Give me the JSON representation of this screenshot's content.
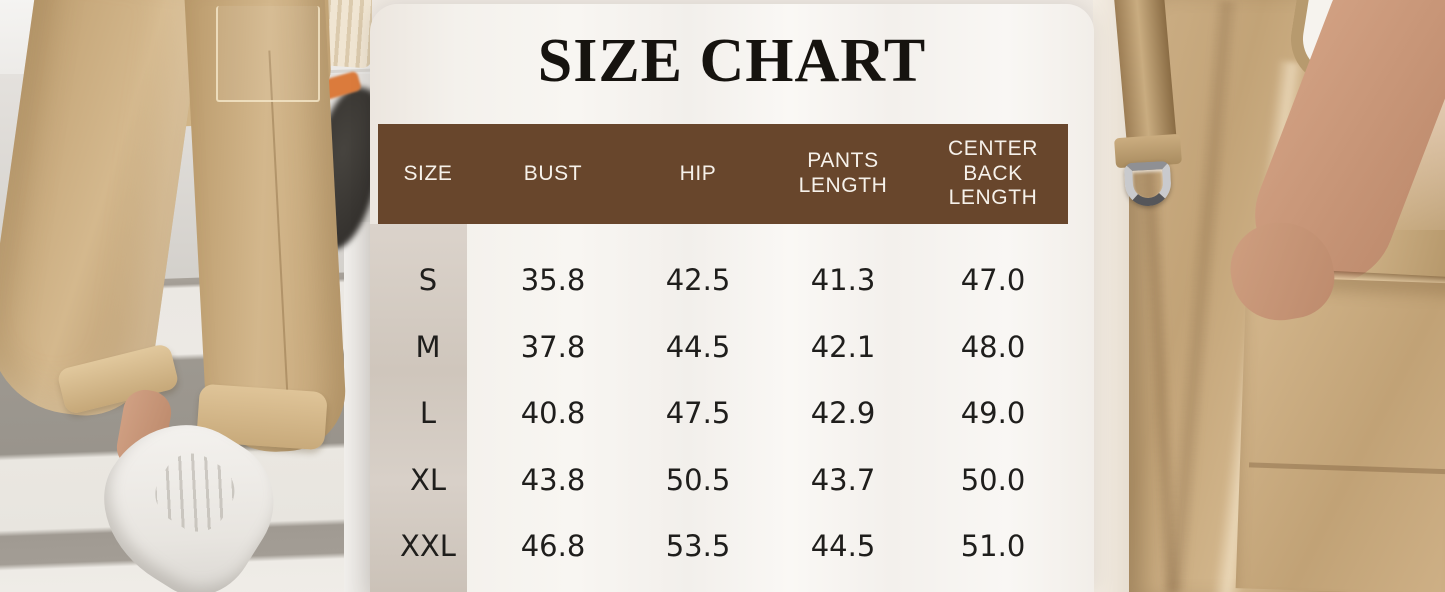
{
  "panel": {
    "title": "SIZE CHART"
  },
  "table": {
    "columns": [
      "SIZE",
      "BUST",
      "HIP",
      "PANTS\nLENGTH",
      "CENTER\nBACK\nLENGTH"
    ],
    "rows": [
      {
        "size": "S",
        "bust": "35.8",
        "hip": "42.5",
        "pants_length": "41.3",
        "center_back_length": "47.0"
      },
      {
        "size": "M",
        "bust": "37.8",
        "hip": "44.5",
        "pants_length": "42.1",
        "center_back_length": "48.0"
      },
      {
        "size": "L",
        "bust": "40.8",
        "hip": "47.5",
        "pants_length": "42.9",
        "center_back_length": "49.0"
      },
      {
        "size": "XL",
        "bust": "43.8",
        "hip": "50.5",
        "pants_length": "43.7",
        "center_back_length": "50.0"
      },
      {
        "size": "XXL",
        "bust": "46.8",
        "hip": "53.5",
        "pants_length": "44.5",
        "center_back_length": "51.0"
      }
    ]
  },
  "chart_data": {
    "type": "table",
    "title": "SIZE CHART",
    "columns": [
      "SIZE",
      "BUST",
      "HIP",
      "PANTS LENGTH",
      "CENTER BACK LENGTH"
    ],
    "rows": [
      [
        "S",
        35.8,
        42.5,
        41.3,
        47.0
      ],
      [
        "M",
        37.8,
        44.5,
        42.1,
        48.0
      ],
      [
        "L",
        40.8,
        47.5,
        42.9,
        49.0
      ],
      [
        "XL",
        43.8,
        50.5,
        43.7,
        50.0
      ],
      [
        "XXL",
        46.8,
        53.5,
        44.5,
        51.0
      ]
    ]
  },
  "colors": {
    "header_bg": "#68462c",
    "header_text": "#f6f1ea",
    "panel_bg": "#f5f1ec",
    "size_column_strip": "#d4ccc3",
    "body_text": "#1f1e1c",
    "title_text": "#16130f",
    "photo_khaki": "#c9ab80"
  },
  "photos": {
    "left": "model-in-khaki-jogger-pants-crosswalk",
    "right": "khaki-jumpsuit-pocket-dring-closeup"
  }
}
